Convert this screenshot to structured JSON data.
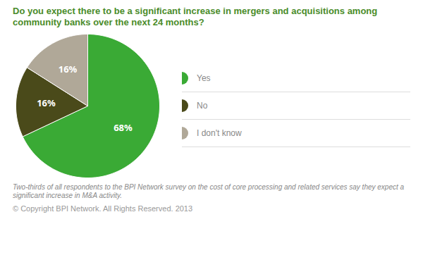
{
  "chart_data": {
    "type": "pie",
    "title": "Do you expect there to be a significant increase in mergers and acquisitions among community banks over the next 24 months?",
    "categories": [
      "Yes",
      "No",
      "I don't know"
    ],
    "values": [
      68,
      16,
      16
    ],
    "value_labels": [
      "68%",
      "16%",
      "16%"
    ],
    "colors": [
      "#3aaa35",
      "#4a4a1a",
      "#b0a898"
    ],
    "data_labels": true,
    "legend": "right",
    "annotations": [
      "Two-thirds of all respondents to the BPI Network survey on the cost of core processing and related services say they expect a\nsignificant increase in M&A activity.",
      "© Copyright BPI Network. All Rights Reserved. 2013"
    ]
  }
}
